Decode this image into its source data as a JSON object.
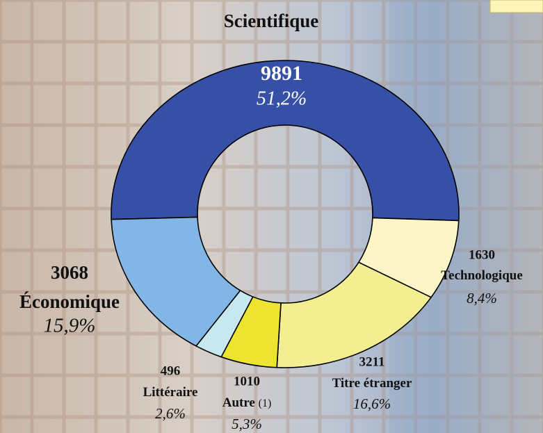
{
  "chart_data": {
    "type": "donut",
    "categories": [
      "Scientifique",
      "Technologique",
      "Titre étranger",
      "Autre",
      "Littéraire",
      "Économique"
    ],
    "values": [
      9891,
      1630,
      3211,
      1010,
      496,
      3068
    ],
    "percent_labels": [
      "51,2%",
      "8,4%",
      "16,6%",
      "5,3%",
      "2,6%",
      "15,9%"
    ],
    "footnote": "(1)",
    "colors": [
      "#3650a8",
      "#fbf5c8",
      "#f4ee92",
      "#ece42e",
      "#c8e8f0",
      "#82b6e6"
    ]
  }
}
